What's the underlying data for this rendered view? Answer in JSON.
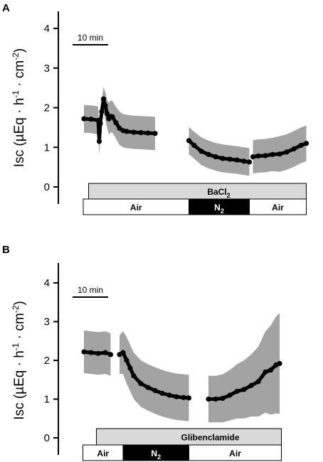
{
  "chart_data": [
    {
      "panel": "A",
      "type": "line",
      "ylabel": "Isc (µEq · h⁻¹ · cm⁻²)",
      "ylabel_parts": {
        "main": "Isc (µEq · h",
        "e1": "-1",
        "mid": " · cm",
        "e2": "-2",
        "end": ")"
      },
      "ylim": [
        0,
        4.5
      ],
      "yticks": [
        "0",
        "1",
        "2",
        "3",
        "4"
      ],
      "scale_bar_label": "10 min",
      "time_unit": "min",
      "series": [
        {
          "points": [
            [
              0,
              1.72
            ],
            [
              2,
              1.71
            ],
            [
              4,
              1.68
            ],
            [
              4.3,
              1.15
            ],
            [
              4.6,
              1.6
            ],
            [
              5,
              1.9
            ],
            [
              5.5,
              2.22
            ],
            [
              6,
              2.05
            ],
            [
              6.5,
              1.85
            ],
            [
              7,
              1.72
            ],
            [
              7.5,
              1.78
            ],
            [
              8,
              1.77
            ],
            [
              9,
              1.62
            ],
            [
              10,
              1.48
            ],
            [
              11,
              1.42
            ],
            [
              12,
              1.4
            ],
            [
              14,
              1.38
            ],
            [
              16,
              1.37
            ],
            [
              18,
              1.36
            ],
            [
              20,
              1.35
            ]
          ],
          "sd": [
            0.35,
            0.35,
            0.35,
            0.35,
            0.3,
            0.3,
            0.3,
            0.35,
            0.35,
            0.4,
            0.4,
            0.4,
            0.4,
            0.42,
            0.42,
            0.42,
            0.42,
            0.42,
            0.42,
            0.42
          ]
        },
        {
          "points": [
            [
              29.5,
              1.17
            ],
            [
              31,
              1.05
            ],
            [
              33,
              0.9
            ],
            [
              35,
              0.82
            ],
            [
              37,
              0.76
            ],
            [
              39,
              0.72
            ],
            [
              41,
              0.7
            ],
            [
              43,
              0.68
            ],
            [
              45,
              0.65
            ],
            [
              46.5,
              0.63
            ]
          ],
          "sd": [
            0.34,
            0.34,
            0.35,
            0.35,
            0.35,
            0.35,
            0.35,
            0.35,
            0.35,
            0.35
          ]
        },
        {
          "points": [
            [
              47.5,
              0.76
            ],
            [
              49,
              0.78
            ],
            [
              51,
              0.79
            ],
            [
              53,
              0.82
            ],
            [
              55,
              0.83
            ],
            [
              57,
              0.88
            ],
            [
              59,
              0.96
            ],
            [
              61,
              1.05
            ],
            [
              62.5,
              1.1
            ]
          ],
          "sd": [
            0.42,
            0.42,
            0.42,
            0.42,
            0.45,
            0.45,
            0.45,
            0.45,
            0.45
          ]
        }
      ],
      "drug_bar": {
        "label": "BaCl",
        "subscript": "2",
        "start": 1.3,
        "end": 62.5
      },
      "gas_bars": [
        {
          "label": "Air",
          "subscript": "",
          "start": -0.2,
          "end": 29.5,
          "fill": "#ffffff",
          "text_color": "#000000"
        },
        {
          "label": "N",
          "subscript": "2",
          "start": 29.5,
          "end": 46.5,
          "fill": "#000000",
          "text_color": "#ffffff"
        },
        {
          "label": "Air",
          "subscript": "",
          "start": 46.5,
          "end": 62.5,
          "fill": "#ffffff",
          "text_color": "#000000"
        }
      ]
    },
    {
      "panel": "B",
      "type": "line",
      "ylabel": "Isc (µEq · h⁻¹ · cm⁻²)",
      "ylabel_parts": {
        "main": "Isc (µEq · h",
        "e1": "-1",
        "mid": " · cm",
        "e2": "-2",
        "end": ")"
      },
      "ylim": [
        0,
        4.5
      ],
      "yticks": [
        "0",
        "1",
        "2",
        "3",
        "4"
      ],
      "scale_bar_label": "10 min",
      "time_unit": "min",
      "series": [
        {
          "points": [
            [
              0,
              2.22
            ],
            [
              2,
              2.2
            ],
            [
              4,
              2.18
            ],
            [
              6,
              2.2
            ],
            [
              7.5,
              2.15
            ]
          ],
          "sd": [
            0.55,
            0.55,
            0.55,
            0.55,
            0.55
          ]
        },
        {
          "points": [
            [
              10,
              2.15
            ],
            [
              11,
              2.2
            ],
            [
              12,
              2.0
            ],
            [
              13,
              1.8
            ],
            [
              14,
              1.6
            ],
            [
              16,
              1.4
            ],
            [
              18,
              1.3
            ],
            [
              20,
              1.22
            ],
            [
              22,
              1.15
            ],
            [
              24,
              1.1
            ],
            [
              26,
              1.06
            ],
            [
              28,
              1.04
            ],
            [
              29.5,
              1.03
            ]
          ],
          "sd": [
            0.5,
            0.55,
            0.6,
            0.6,
            0.6,
            0.6,
            0.6,
            0.6,
            0.6,
            0.6,
            0.6,
            0.6,
            0.6
          ]
        },
        {
          "points": [
            [
              35,
              1.0
            ],
            [
              37,
              1.0
            ],
            [
              39,
              1.02
            ],
            [
              41,
              1.1
            ],
            [
              43,
              1.2
            ],
            [
              45,
              1.25
            ],
            [
              47,
              1.35
            ],
            [
              49,
              1.45
            ],
            [
              51,
              1.7
            ],
            [
              52.5,
              1.75
            ],
            [
              54,
              1.88
            ],
            [
              55,
              1.92
            ]
          ],
          "sd": [
            0.6,
            0.6,
            0.62,
            0.65,
            0.7,
            0.75,
            0.8,
            0.9,
            1.05,
            1.15,
            1.25,
            1.3
          ]
        }
      ],
      "drug_bar": {
        "label": "Glibenclamide",
        "subscript": "",
        "start": 3.5,
        "end": 55.5
      },
      "gas_bars": [
        {
          "label": "Air",
          "subscript": "",
          "start": -0.3,
          "end": 11,
          "fill": "#ffffff",
          "text_color": "#000000"
        },
        {
          "label": "N",
          "subscript": "2",
          "start": 11,
          "end": 29.5,
          "fill": "#000000",
          "text_color": "#ffffff"
        },
        {
          "label": "Air",
          "subscript": "",
          "start": 29.5,
          "end": 55.5,
          "fill": "#ffffff",
          "text_color": "#000000"
        }
      ]
    }
  ],
  "colors": {
    "trace": "#000000",
    "sd_band": "#a3a3a3",
    "drug_bar_fill": "#d9d9d9",
    "axis": "#000000"
  }
}
